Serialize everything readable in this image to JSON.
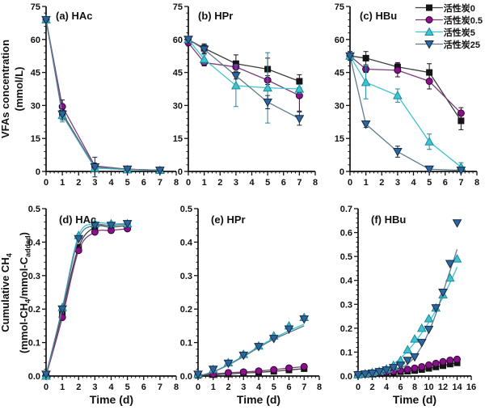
{
  "figure": {
    "background": "#ffffff"
  },
  "labels": {
    "vfa_ylabel_line1": "VFAs concentration",
    "vfa_ylabel_line2": "(mmol/L)",
    "ch4": {
      "l1a": "Cumulative CH",
      "l1sub": "4",
      "l2a": "(mmol-CH",
      "l2sub": "4",
      "l2b": "/mmol-C",
      "l2sub2": "added",
      "l2c": ")"
    },
    "time_xlabel": "Time (d)"
  },
  "colors": {
    "ac0": {
      "fill": "#141414",
      "edge": "#141414",
      "line": "#3d3d3d"
    },
    "ac05": {
      "fill": "#8b0f8c",
      "edge": "#2b082b",
      "line": "#7a3d7d"
    },
    "ac5": {
      "fill": "#3fc3d2",
      "edge": "#1b8a99",
      "line": "#3fc3d2"
    },
    "ac25": {
      "fill": "#2e659c",
      "edge": "#122c47",
      "line": "#5d7b8d"
    }
  },
  "chart_data": [
    {
      "id": "a",
      "type": "line",
      "title": "(a) HAc",
      "smooth": false,
      "x": [
        0,
        1,
        3,
        5,
        7
      ],
      "xlim": [
        0,
        8
      ],
      "ylim": [
        0,
        75
      ],
      "xticks": [
        "0",
        "1",
        "2",
        "3",
        "4",
        "5",
        "6",
        "7",
        "8"
      ],
      "yticks": [
        "0",
        "15",
        "30",
        "45",
        "60",
        "75"
      ],
      "xminor": 3,
      "yminor": 4,
      "series": [
        {
          "name": "活性炭0",
          "marker": "square",
          "color_key": "ac0",
          "values": [
            69,
            26.5,
            2,
            1,
            0.5
          ],
          "errors": [
            1,
            2,
            0.8,
            0.4,
            0.3
          ]
        },
        {
          "name": "活性炭0.5",
          "marker": "circle",
          "color_key": "ac05",
          "values": [
            69,
            29.5,
            2.5,
            1,
            0.6
          ],
          "errors": [
            1,
            3,
            0.8,
            0.4,
            0.3
          ]
        },
        {
          "name": "活性炭5",
          "marker": "triangle-up",
          "color_key": "ac5",
          "values": [
            69,
            25.5,
            1.5,
            0.8,
            0.5
          ],
          "errors": [
            1,
            3,
            0.8,
            0.4,
            0.3
          ]
        },
        {
          "name": "活性炭25",
          "marker": "triangle-down",
          "color_key": "ac25",
          "values": [
            69,
            26,
            2,
            1,
            0.5
          ],
          "errors": [
            1,
            2.5,
            4.5,
            0.4,
            0.3
          ]
        }
      ]
    },
    {
      "id": "b",
      "type": "line",
      "title": "(b) HPr",
      "smooth": false,
      "x": [
        0,
        1,
        3,
        5,
        7
      ],
      "xlim": [
        0,
        8
      ],
      "ylim": [
        0,
        75
      ],
      "xticks": [
        "0",
        "1",
        "2",
        "3",
        "4",
        "5",
        "6",
        "7",
        "8"
      ],
      "yticks": [
        "0",
        "15",
        "30",
        "45",
        "60",
        "75"
      ],
      "xminor": 3,
      "yminor": 4,
      "series": [
        {
          "name": "活性炭0",
          "marker": "square",
          "color_key": "ac0",
          "values": [
            60,
            56,
            49,
            46.5,
            41
          ],
          "errors": [
            1,
            2,
            4,
            5,
            3
          ]
        },
        {
          "name": "活性炭0.5",
          "marker": "circle",
          "color_key": "ac05",
          "values": [
            58.5,
            49.5,
            47.5,
            41.5,
            34.5
          ],
          "errors": [
            1,
            1.5,
            2,
            2,
            7
          ]
        },
        {
          "name": "活性炭5",
          "marker": "triangle-up",
          "color_key": "ac5",
          "values": [
            60,
            51,
            39,
            38,
            37.5
          ],
          "errors": [
            1,
            2,
            9.5,
            16,
            2
          ]
        },
        {
          "name": "活性炭25",
          "marker": "triangle-down",
          "color_key": "ac25",
          "values": [
            60,
            55.5,
            43.5,
            31.5,
            24
          ],
          "errors": [
            0.5,
            2,
            1.5,
            3,
            3
          ]
        }
      ]
    },
    {
      "id": "c",
      "type": "line",
      "title": "(c) HBu",
      "smooth": false,
      "x": [
        0,
        1,
        3,
        5,
        7
      ],
      "xlim": [
        0,
        8
      ],
      "ylim": [
        0,
        75
      ],
      "xticks": [
        "0",
        "1",
        "2",
        "3",
        "4",
        "5",
        "6",
        "7",
        "8"
      ],
      "yticks": [
        "0",
        "15",
        "30",
        "45",
        "60",
        "75"
      ],
      "xminor": 3,
      "yminor": 4,
      "series": [
        {
          "name": "活性炭0",
          "marker": "square",
          "color_key": "ac0",
          "values": [
            52.5,
            51.5,
            47.5,
            45,
            23
          ],
          "errors": [
            1,
            3,
            2,
            4,
            4
          ]
        },
        {
          "name": "活性炭0.5",
          "marker": "circle",
          "color_key": "ac05",
          "values": [
            52.5,
            46.5,
            46,
            41,
            26.5
          ],
          "errors": [
            1,
            1.5,
            3,
            3.5,
            2.5
          ]
        },
        {
          "name": "活性炭5",
          "marker": "triangle-up",
          "color_key": "ac5",
          "values": [
            52.5,
            40.5,
            34.5,
            13.5,
            2
          ],
          "errors": [
            2,
            7.5,
            3,
            3.5,
            2
          ]
        },
        {
          "name": "活性炭25",
          "marker": "triangle-down",
          "color_key": "ac25",
          "values": [
            52.5,
            21.5,
            9,
            1,
            0.5
          ],
          "errors": [
            2,
            1.5,
            2.5,
            1,
            0.5
          ]
        }
      ]
    },
    {
      "id": "d",
      "type": "line",
      "title": "(d) HAc",
      "smooth": true,
      "xlabel": "Time (d)",
      "x": [
        0,
        1,
        2,
        3,
        4,
        5
      ],
      "xlim": [
        0,
        8
      ],
      "ylim": [
        0,
        0.5
      ],
      "xticks": [
        "0",
        "1",
        "2",
        "3",
        "4",
        "5",
        "6",
        "7",
        "8"
      ],
      "yticks": [
        "0.0",
        "0.1",
        "0.2",
        "0.3",
        "0.4",
        "0.5"
      ],
      "xminor": 3,
      "yminor": 4,
      "series": [
        {
          "name": "活性炭0",
          "marker": "square",
          "color_key": "ac0",
          "values": [
            0,
            0.19,
            0.385,
            0.445,
            0.445,
            0.45
          ]
        },
        {
          "name": "活性炭0.5",
          "marker": "circle",
          "color_key": "ac05",
          "values": [
            0,
            0.175,
            0.375,
            0.43,
            0.435,
            0.44
          ]
        },
        {
          "name": "活性炭5",
          "marker": "triangle-up",
          "color_key": "ac5",
          "values": [
            0,
            0.205,
            0.42,
            0.455,
            0.455,
            0.455
          ]
        },
        {
          "name": "活性炭25",
          "marker": "triangle-down",
          "color_key": "ac25",
          "values": [
            0.005,
            0.2,
            0.41,
            0.45,
            0.45,
            0.455
          ]
        }
      ]
    },
    {
      "id": "e",
      "type": "line",
      "title": "(e) HPr",
      "smooth": true,
      "xlabel": "Time (d)",
      "x": [
        0,
        1,
        2,
        3,
        4,
        5,
        6,
        7
      ],
      "xlim": [
        0,
        8
      ],
      "ylim": [
        0,
        0.5
      ],
      "xticks": [
        "0",
        "1",
        "2",
        "3",
        "4",
        "5",
        "6",
        "7",
        "8"
      ],
      "yticks": [
        "0.0",
        "0.1",
        "0.2",
        "0.3",
        "0.4",
        "0.5"
      ],
      "xminor": 3,
      "yminor": 4,
      "series": [
        {
          "name": "活性炭0",
          "marker": "square",
          "color_key": "ac0",
          "values": [
            0.002,
            0.004,
            0.006,
            0.009,
            0.011,
            0.014,
            0.018,
            0.022
          ]
        },
        {
          "name": "活性炭0.5",
          "marker": "circle",
          "color_key": "ac05",
          "values": [
            0.003,
            0.006,
            0.01,
            0.012,
            0.015,
            0.019,
            0.024,
            0.028
          ]
        },
        {
          "name": "活性炭5",
          "marker": "triangle-up",
          "color_key": "ac5",
          "values": [
            0.005,
            0.02,
            0.04,
            0.065,
            0.09,
            0.12,
            0.15,
            0.175
          ],
          "fit": [
            0,
            0.013,
            0.035,
            0.06,
            0.088,
            0.113,
            0.135,
            0.155
          ]
        },
        {
          "name": "活性炭25",
          "marker": "triangle-down",
          "color_key": "ac25",
          "values": [
            0.005,
            0.02,
            0.038,
            0.062,
            0.088,
            0.112,
            0.14,
            0.17
          ],
          "fit": [
            0,
            0.012,
            0.033,
            0.058,
            0.085,
            0.11,
            0.13,
            0.15
          ]
        }
      ]
    },
    {
      "id": "f",
      "type": "line",
      "title": "(f) HBu",
      "smooth": true,
      "xlabel": "Time (d)",
      "x": [
        0,
        1,
        2,
        3,
        4,
        5,
        6,
        7,
        8,
        9,
        10,
        11,
        12,
        13,
        14
      ],
      "xlim": [
        0,
        16
      ],
      "ylim": [
        0,
        0.7
      ],
      "xticks": [
        "0",
        "2",
        "4",
        "6",
        "8",
        "10",
        "12",
        "14",
        "16"
      ],
      "yticks": [
        "0.0",
        "0.1",
        "0.2",
        "0.3",
        "0.4",
        "0.5",
        "0.6",
        "0.7"
      ],
      "xminor": 3,
      "yminor": 4,
      "series": [
        {
          "name": "活性炭0",
          "marker": "square",
          "color_key": "ac0",
          "values": [
            0.005,
            0.007,
            0.008,
            0.01,
            0.012,
            0.015,
            0.018,
            0.02,
            0.023,
            0.027,
            0.032,
            0.038,
            0.043,
            0.05,
            0.055
          ]
        },
        {
          "name": "活性炭0.5",
          "marker": "circle",
          "color_key": "ac05",
          "values": [
            0.005,
            0.008,
            0.01,
            0.013,
            0.016,
            0.019,
            0.023,
            0.028,
            0.033,
            0.039,
            0.046,
            0.053,
            0.06,
            0.066,
            0.07
          ]
        },
        {
          "name": "活性炭5",
          "marker": "triangle-up",
          "color_key": "ac5",
          "values": [
            0.005,
            0.01,
            0.015,
            0.02,
            0.03,
            0.045,
            0.065,
            0.11,
            0.155,
            0.2,
            0.24,
            0.285,
            0.34,
            0.41,
            0.49
          ],
          "fit": [
            0.003,
            0.006,
            0.012,
            0.02,
            0.032,
            0.05,
            0.075,
            0.105,
            0.14,
            0.18,
            0.225,
            0.275,
            0.33,
            0.39,
            0.455
          ]
        },
        {
          "name": "活性炭25",
          "marker": "triangle-down",
          "color_key": "ac25",
          "values": [
            0.005,
            0.008,
            0.012,
            0.018,
            0.025,
            0.035,
            0.045,
            0.065,
            0.08,
            0.14,
            0.195,
            0.285,
            0.35,
            0.47,
            0.64
          ],
          "fit": [
            0.001,
            0.002,
            0.004,
            0.007,
            0.012,
            0.02,
            0.032,
            0.05,
            0.08,
            0.125,
            0.185,
            0.26,
            0.35,
            0.44,
            0.53
          ]
        }
      ]
    }
  ]
}
